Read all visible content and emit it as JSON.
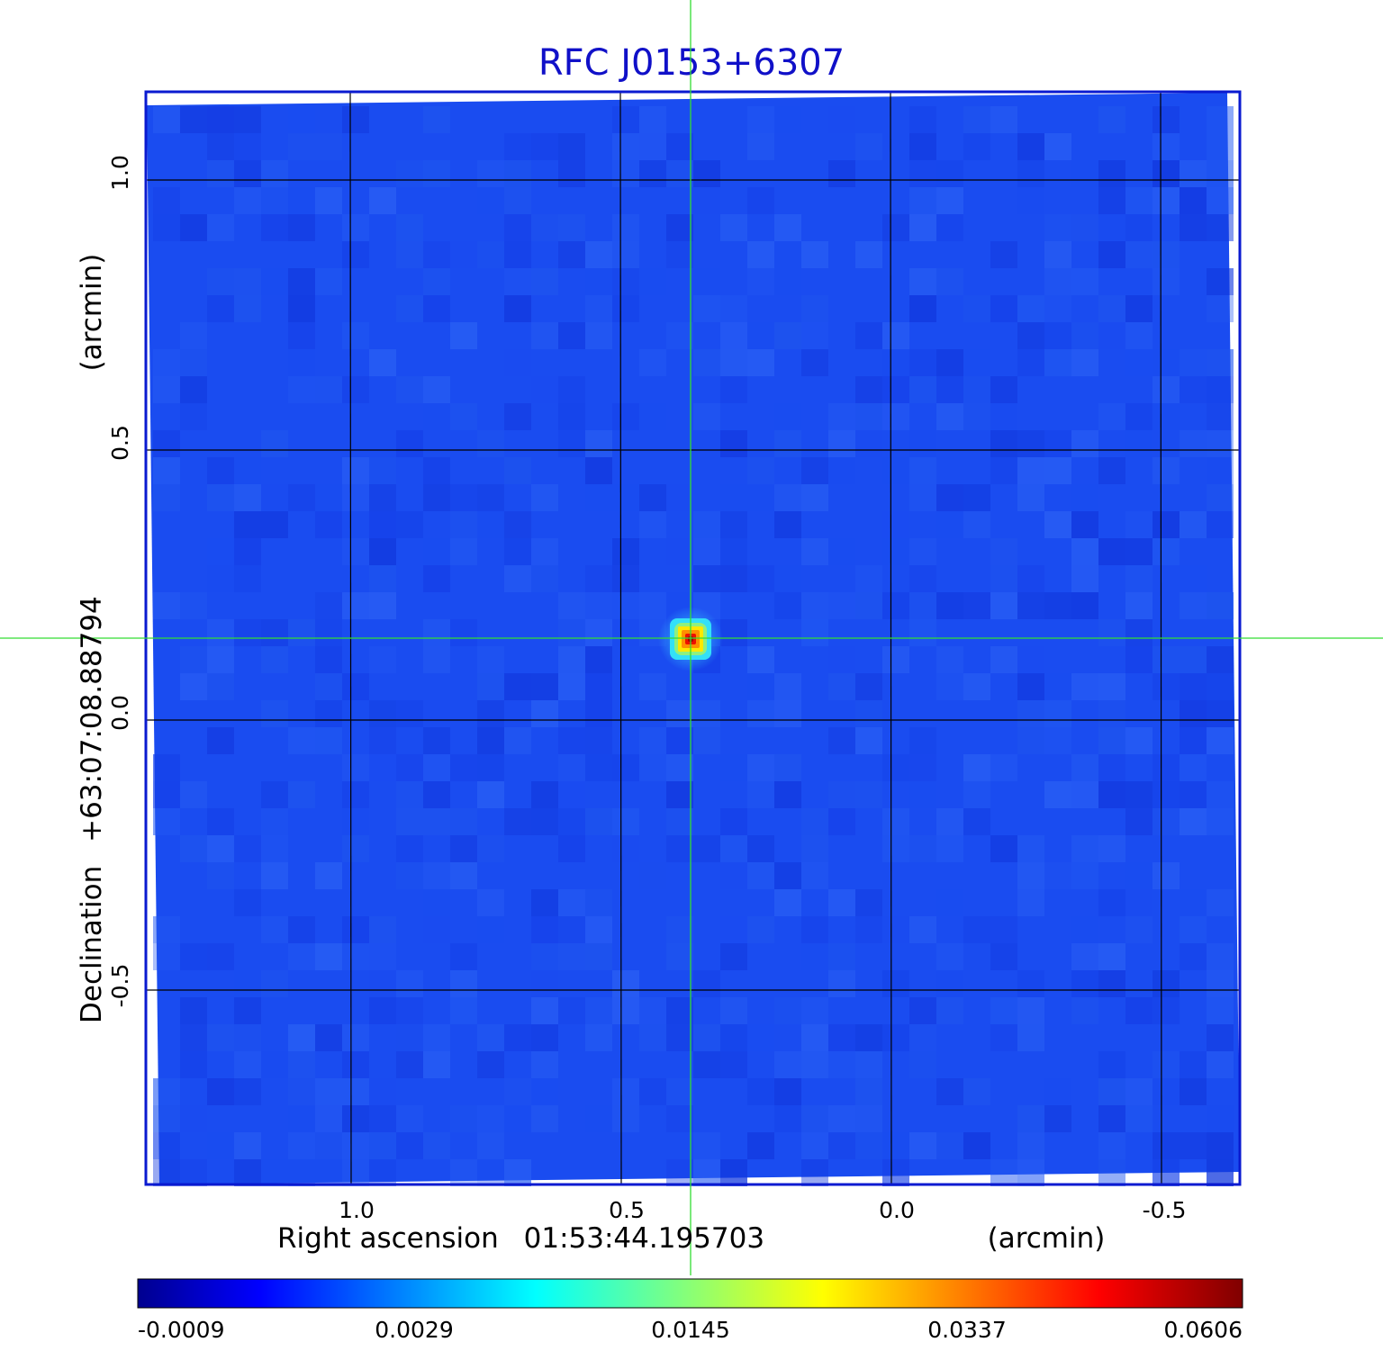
{
  "title": "RFC J0153+6307",
  "x_axis": {
    "label": "Right ascension",
    "center": "01:53:44.195703",
    "unit": "(arcmin)",
    "ticks": [
      "1.0",
      "0.5",
      "0.0",
      "-0.5"
    ]
  },
  "y_axis": {
    "label": "Declination",
    "center": "+63:07:08.88794",
    "unit": "(arcmin)",
    "ticks": [
      "1.0",
      "0.5",
      "0.0",
      "-0.5"
    ]
  },
  "colorbar": {
    "ticks": [
      "-0.0009",
      "0.0029",
      "0.0145",
      "0.0337",
      "0.0606"
    ],
    "colormap": "jet"
  },
  "colors": {
    "background_map": "#1a4cf0",
    "frame": "#0a1ad0",
    "crosshair": "#33dd33",
    "grid": "#000000",
    "title": "#1010c8"
  },
  "source": {
    "ra_offset_arcmin": 0.37,
    "dec_offset_arcmin": 0.15
  }
}
